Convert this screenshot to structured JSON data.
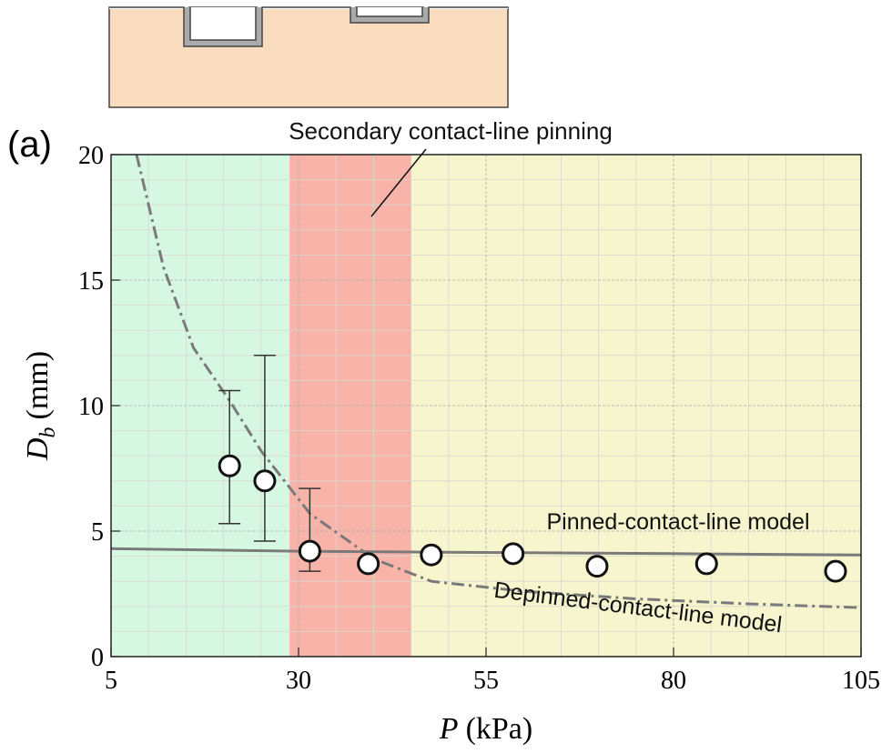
{
  "chart_data": {
    "type": "scatter",
    "label": "(a)",
    "xlabel": {
      "symbol": "P",
      "unit": "(kPa)"
    },
    "ylabel": {
      "symbol": "D",
      "subscript": "b",
      "unit": "(mm)"
    },
    "xlim": [
      5,
      105
    ],
    "xticks": [
      5,
      30,
      55,
      80,
      105
    ],
    "ylim": [
      0,
      20
    ],
    "yticks": [
      0,
      5,
      10,
      15,
      20
    ],
    "grid": true,
    "minor_grid": true,
    "regions": [
      {
        "x0": 5,
        "x1": 28.8,
        "color": "#d6f7e2"
      },
      {
        "x0": 28.8,
        "x1": 45,
        "color": "#f9b4a9"
      },
      {
        "x0": 45,
        "x1": 105,
        "color": "#f7f5cd"
      }
    ],
    "series": [
      {
        "color": "#ffffff",
        "x": [
          20.8,
          25.5,
          31.5,
          39.3,
          47.7,
          58.6,
          69.8,
          84.4,
          101.6
        ],
        "values": [
          7.6,
          7.0,
          4.2,
          3.7,
          4.05,
          4.1,
          3.6,
          3.7,
          3.4
        ],
        "lower": [
          5.3,
          4.6,
          3.4,
          null,
          null,
          null,
          null,
          null,
          null
        ],
        "upper": [
          10.6,
          12.0,
          6.7,
          null,
          null,
          null,
          null,
          null,
          null
        ]
      }
    ],
    "lines": [
      {
        "name": "Pinned-contact-line model",
        "style": "solid",
        "color": "#7a7a7a",
        "x": [
          5,
          30,
          55,
          80,
          105
        ],
        "values": [
          4.3,
          4.2,
          4.15,
          4.1,
          4.05
        ]
      },
      {
        "name": "Depinned-contact-line model",
        "style": "dashdot",
        "color": "#7a7a7a",
        "x": [
          8.4,
          12,
          16,
          20.8,
          25,
          31.5,
          40,
          47.7,
          60,
          75,
          90,
          105
        ],
        "values": [
          20,
          15.5,
          12.3,
          10.2,
          8.2,
          5.7,
          3.9,
          3.0,
          2.6,
          2.3,
          2.1,
          1.95
        ]
      }
    ],
    "annotation": {
      "text": "Secondary contact-line pinning"
    }
  }
}
